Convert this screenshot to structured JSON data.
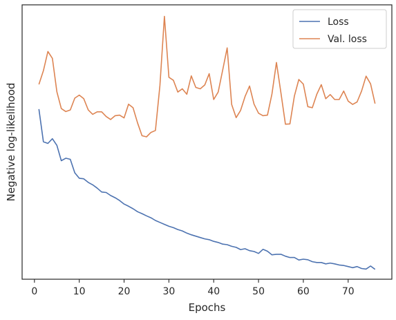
{
  "chart_data": {
    "type": "line",
    "xlabel": "Epochs",
    "ylabel": "Negative log-likelihood",
    "xlim": [
      -2.75,
      79.75
    ],
    "ylim": [
      0,
      100
    ],
    "x_ticks": [
      0,
      10,
      20,
      30,
      40,
      50,
      60,
      70
    ],
    "y_ticks_visible": false,
    "grid": false,
    "legend": "top-right",
    "series": [
      {
        "name": "Loss",
        "color": "#4c72b0",
        "x": [
          1,
          2,
          3,
          4,
          5,
          6,
          7,
          8,
          9,
          10,
          11,
          12,
          13,
          14,
          15,
          16,
          17,
          18,
          19,
          20,
          21,
          22,
          23,
          24,
          25,
          26,
          27,
          28,
          29,
          30,
          31,
          32,
          33,
          34,
          35,
          36,
          37,
          38,
          39,
          40,
          41,
          42,
          43,
          44,
          45,
          46,
          47,
          48,
          49,
          50,
          51,
          52,
          53,
          54,
          55,
          56,
          57,
          58,
          59,
          60,
          61,
          62,
          63,
          64,
          65,
          66,
          67,
          68,
          69,
          70,
          71,
          72,
          73,
          74,
          75,
          76
        ],
        "values": [
          62.0,
          50.1,
          49.5,
          51.2,
          48.8,
          43.2,
          44.1,
          43.7,
          38.8,
          36.8,
          36.6,
          35.3,
          34.4,
          33.2,
          31.8,
          31.6,
          30.5,
          29.7,
          28.7,
          27.4,
          26.6,
          25.7,
          24.6,
          23.9,
          23.1,
          22.4,
          21.4,
          20.7,
          20.0,
          19.3,
          18.8,
          18.1,
          17.6,
          16.8,
          16.2,
          15.7,
          15.2,
          14.7,
          14.4,
          13.8,
          13.4,
          12.8,
          12.6,
          12.0,
          11.6,
          10.8,
          11.1,
          10.4,
          10.1,
          9.4,
          10.9,
          10.2,
          8.9,
          9.1,
          9.1,
          8.4,
          7.9,
          7.9,
          7.0,
          7.3,
          7.1,
          6.4,
          6.1,
          6.1,
          5.6,
          5.9,
          5.6,
          5.2,
          5.0,
          4.6,
          4.2,
          4.6,
          3.9,
          3.7,
          4.8,
          3.6
        ]
      },
      {
        "name": "Val. loss",
        "color": "#dd8452",
        "x": [
          1,
          2,
          3,
          4,
          5,
          6,
          7,
          8,
          9,
          10,
          11,
          12,
          13,
          14,
          15,
          16,
          17,
          18,
          19,
          20,
          21,
          22,
          23,
          24,
          25,
          26,
          27,
          28,
          29,
          30,
          31,
          32,
          33,
          34,
          35,
          36,
          37,
          38,
          39,
          40,
          41,
          42,
          43,
          44,
          45,
          46,
          47,
          48,
          49,
          50,
          51,
          52,
          53,
          54,
          55,
          56,
          57,
          58,
          59,
          60,
          61,
          62,
          63,
          64,
          65,
          66,
          67,
          68,
          69,
          70,
          71,
          72,
          73,
          74,
          75,
          76
        ],
        "values": [
          71.0,
          76.0,
          83.0,
          80.5,
          68.3,
          62.2,
          61.1,
          61.7,
          66.0,
          67.1,
          65.8,
          61.7,
          60.1,
          61.0,
          61.0,
          59.3,
          58.2,
          59.6,
          59.8,
          58.8,
          63.8,
          62.5,
          57.0,
          52.3,
          51.9,
          53.5,
          54.2,
          70.6,
          95.8,
          73.6,
          72.5,
          68.2,
          69.4,
          67.4,
          74.1,
          69.9,
          69.4,
          70.8,
          74.9,
          65.5,
          68.2,
          76.2,
          84.3,
          63.7,
          58.9,
          61.5,
          66.6,
          70.4,
          63.8,
          60.5,
          59.6,
          59.8,
          67.5,
          79.0,
          67.9,
          56.5,
          56.6,
          66.8,
          72.8,
          71.1,
          62.9,
          62.5,
          67.4,
          70.9,
          65.8,
          67.3,
          65.5,
          65.5,
          68.6,
          64.9,
          63.7,
          64.6,
          68.6,
          74.0,
          71.2,
          64.0
        ]
      }
    ]
  }
}
